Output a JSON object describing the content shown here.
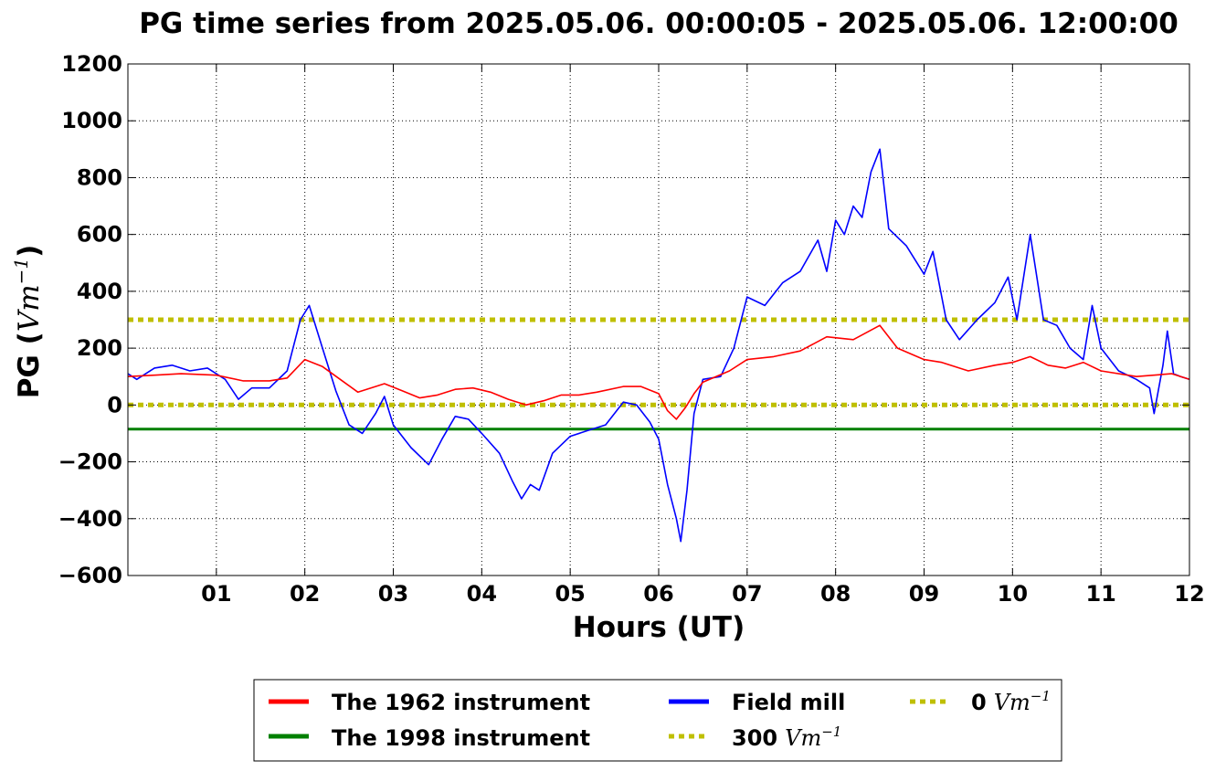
{
  "chart_data": {
    "type": "line",
    "title": "PG time series from 2025.05.06. 00:00:05 - 2025.05.06. 12:00:00",
    "xlabel": "Hours (UT)",
    "ylabel_main": "PG (",
    "ylabel_unit": "Vm",
    "ylabel_exp": "−1",
    "ylabel_close": ")",
    "xlim": [
      0,
      12
    ],
    "ylim": [
      -600,
      1200
    ],
    "xticks": [
      1,
      2,
      3,
      4,
      5,
      6,
      7,
      8,
      9,
      10,
      11,
      12
    ],
    "xtick_labels": [
      "01",
      "02",
      "03",
      "04",
      "05",
      "06",
      "07",
      "08",
      "09",
      "10",
      "11",
      "12"
    ],
    "yticks": [
      -600,
      -400,
      -200,
      0,
      200,
      400,
      600,
      800,
      1000,
      1200
    ],
    "ytick_labels": [
      "−600",
      "−400",
      "−200",
      "0",
      "200",
      "400",
      "600",
      "800",
      "1000",
      "1200"
    ],
    "grid": true,
    "legend_position": "bottom-center",
    "series": [
      {
        "name": "The 1962 instrument",
        "color": "#ff0000",
        "style": "solid",
        "points": [
          [
            0,
            100
          ],
          [
            0.3,
            105
          ],
          [
            0.6,
            110
          ],
          [
            1.0,
            105
          ],
          [
            1.3,
            85
          ],
          [
            1.6,
            85
          ],
          [
            1.8,
            95
          ],
          [
            2.0,
            160
          ],
          [
            2.2,
            135
          ],
          [
            2.4,
            90
          ],
          [
            2.6,
            45
          ],
          [
            2.8,
            65
          ],
          [
            2.9,
            75
          ],
          [
            3.1,
            50
          ],
          [
            3.3,
            25
          ],
          [
            3.5,
            35
          ],
          [
            3.7,
            55
          ],
          [
            3.9,
            60
          ],
          [
            4.1,
            45
          ],
          [
            4.3,
            20
          ],
          [
            4.5,
            0
          ],
          [
            4.7,
            15
          ],
          [
            4.9,
            35
          ],
          [
            5.1,
            35
          ],
          [
            5.3,
            45
          ],
          [
            5.6,
            65
          ],
          [
            5.8,
            65
          ],
          [
            6.0,
            40
          ],
          [
            6.1,
            -20
          ],
          [
            6.2,
            -50
          ],
          [
            6.3,
            -10
          ],
          [
            6.4,
            40
          ],
          [
            6.5,
            80
          ],
          [
            6.8,
            120
          ],
          [
            7.0,
            160
          ],
          [
            7.3,
            170
          ],
          [
            7.6,
            190
          ],
          [
            7.9,
            240
          ],
          [
            8.2,
            230
          ],
          [
            8.5,
            280
          ],
          [
            8.7,
            200
          ],
          [
            9.0,
            160
          ],
          [
            9.2,
            150
          ],
          [
            9.5,
            120
          ],
          [
            9.8,
            140
          ],
          [
            10.0,
            150
          ],
          [
            10.2,
            170
          ],
          [
            10.4,
            140
          ],
          [
            10.6,
            130
          ],
          [
            10.8,
            150
          ],
          [
            11.0,
            120
          ],
          [
            11.4,
            100
          ],
          [
            11.8,
            110
          ],
          [
            12.0,
            90
          ]
        ]
      },
      {
        "name": "The 1998 instrument",
        "color": "#008000",
        "style": "solid",
        "points": [
          [
            0,
            -85
          ],
          [
            12,
            -85
          ]
        ]
      },
      {
        "name": "Field mill",
        "color": "#0000ff",
        "style": "solid",
        "points": [
          [
            0,
            110
          ],
          [
            0.1,
            90
          ],
          [
            0.3,
            130
          ],
          [
            0.5,
            140
          ],
          [
            0.7,
            120
          ],
          [
            0.9,
            130
          ],
          [
            1.1,
            90
          ],
          [
            1.25,
            20
          ],
          [
            1.4,
            60
          ],
          [
            1.6,
            60
          ],
          [
            1.8,
            120
          ],
          [
            1.95,
            300
          ],
          [
            2.05,
            350
          ],
          [
            2.2,
            200
          ],
          [
            2.35,
            50
          ],
          [
            2.5,
            -70
          ],
          [
            2.65,
            -100
          ],
          [
            2.8,
            -30
          ],
          [
            2.9,
            30
          ],
          [
            3.0,
            -70
          ],
          [
            3.2,
            -150
          ],
          [
            3.4,
            -210
          ],
          [
            3.55,
            -120
          ],
          [
            3.7,
            -40
          ],
          [
            3.85,
            -50
          ],
          [
            4.0,
            -100
          ],
          [
            4.2,
            -170
          ],
          [
            4.35,
            -270
          ],
          [
            4.45,
            -330
          ],
          [
            4.55,
            -280
          ],
          [
            4.65,
            -300
          ],
          [
            4.8,
            -170
          ],
          [
            5.0,
            -110
          ],
          [
            5.2,
            -90
          ],
          [
            5.4,
            -70
          ],
          [
            5.6,
            10
          ],
          [
            5.75,
            0
          ],
          [
            5.9,
            -60
          ],
          [
            6.0,
            -120
          ],
          [
            6.1,
            -280
          ],
          [
            6.2,
            -400
          ],
          [
            6.25,
            -480
          ],
          [
            6.32,
            -300
          ],
          [
            6.4,
            -30
          ],
          [
            6.5,
            90
          ],
          [
            6.7,
            100
          ],
          [
            6.85,
            200
          ],
          [
            7.0,
            380
          ],
          [
            7.2,
            350
          ],
          [
            7.4,
            430
          ],
          [
            7.6,
            470
          ],
          [
            7.8,
            580
          ],
          [
            7.9,
            470
          ],
          [
            8.0,
            650
          ],
          [
            8.1,
            600
          ],
          [
            8.2,
            700
          ],
          [
            8.3,
            660
          ],
          [
            8.4,
            820
          ],
          [
            8.5,
            900
          ],
          [
            8.6,
            620
          ],
          [
            8.8,
            560
          ],
          [
            9.0,
            460
          ],
          [
            9.1,
            540
          ],
          [
            9.25,
            300
          ],
          [
            9.4,
            230
          ],
          [
            9.6,
            300
          ],
          [
            9.8,
            360
          ],
          [
            9.95,
            450
          ],
          [
            10.05,
            300
          ],
          [
            10.2,
            600
          ],
          [
            10.35,
            300
          ],
          [
            10.5,
            280
          ],
          [
            10.65,
            200
          ],
          [
            10.8,
            160
          ],
          [
            10.9,
            350
          ],
          [
            11.0,
            200
          ],
          [
            11.2,
            120
          ],
          [
            11.4,
            90
          ],
          [
            11.55,
            60
          ],
          [
            11.6,
            -30
          ],
          [
            11.7,
            140
          ],
          [
            11.75,
            260
          ],
          [
            11.82,
            110
          ],
          [
            11.9,
            100
          ],
          [
            12.0,
            90
          ]
        ]
      },
      {
        "name": "300",
        "unit": "Vm",
        "unit_exp": "−1",
        "color": "#bfbf00",
        "style": "dotted",
        "points": [
          [
            0,
            300
          ],
          [
            12,
            300
          ]
        ]
      },
      {
        "name": "0",
        "unit": "Vm",
        "unit_exp": "−1",
        "color": "#bfbf00",
        "style": "dotted",
        "points": [
          [
            0,
            0
          ],
          [
            12,
            0
          ]
        ]
      }
    ]
  }
}
